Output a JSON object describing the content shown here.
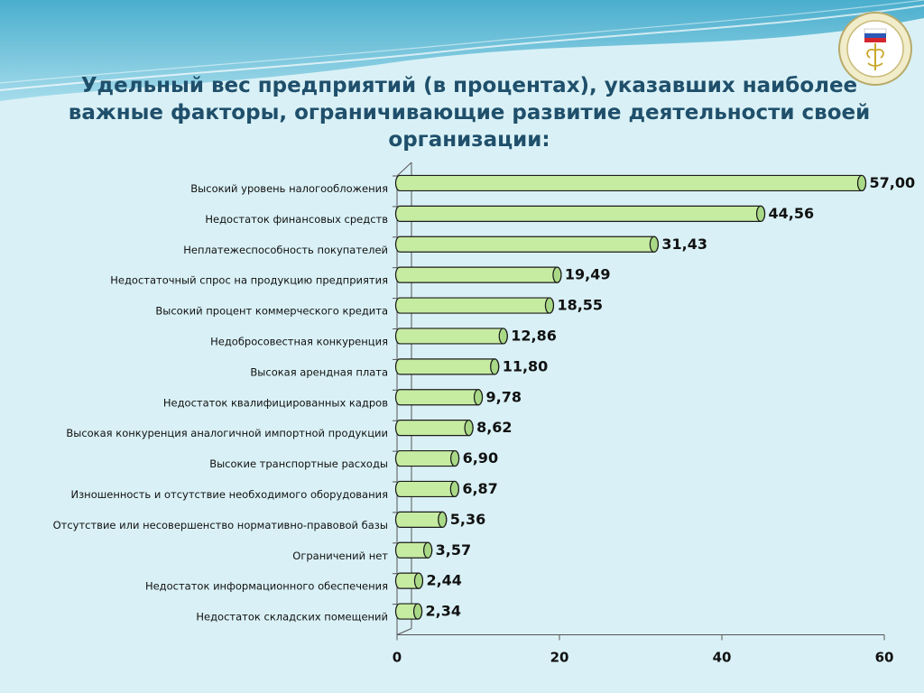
{
  "title": "Удельный вес предприятий (в процентах), указавших наиболее важные факторы, ограничивающие развитие деятельности своей организации:",
  "colors": {
    "bar_fill": "#c6eca2",
    "bar_stroke": "#1b1b1b",
    "title": "#1f4f6b",
    "background": "#d9f1f6"
  },
  "logo": {
    "icon": "ministry-emblem-icon"
  },
  "chart_data": {
    "type": "bar",
    "orientation": "horizontal",
    "categories": [
      "Высокий уровень налогообложения",
      "Недостаток финансовых средств",
      "Неплатежеспособность покупателей",
      "Недостаточный спрос на продукцию предприятия",
      "Высокий процент коммерческого кредита",
      "Недобросовестная конкуренция",
      "Высокая арендная плата",
      "Недостаток квалифицированных кадров",
      "Высокая конкуренция аналогичной импортной продукции",
      "Высокие транспортные расходы",
      "Изношенность и отсутствие необходимого оборудования",
      "Отсутствие или несовершенство нормативно-правовой базы",
      "Ограничений нет",
      "Недостаток информационного обеспечения",
      "Недостаток складских помещений"
    ],
    "values": [
      57.0,
      44.56,
      31.43,
      19.49,
      18.55,
      12.86,
      11.8,
      9.78,
      8.62,
      6.9,
      6.87,
      5.36,
      3.57,
      2.44,
      2.34
    ],
    "value_labels": [
      "57,00",
      "44,56",
      "31,43",
      "19,49",
      "18,55",
      "12,86",
      "11,80",
      "9,78",
      "8,62",
      "6,90",
      "6,87",
      "5,36",
      "3,57",
      "2,44",
      "2,34"
    ],
    "xlim": [
      0,
      60
    ],
    "xticks": [
      0,
      20,
      40,
      60
    ],
    "xtick_labels": [
      "0",
      "20",
      "40",
      "60"
    ],
    "xlabel": "",
    "ylabel": "",
    "grid": false,
    "legend": "none"
  }
}
